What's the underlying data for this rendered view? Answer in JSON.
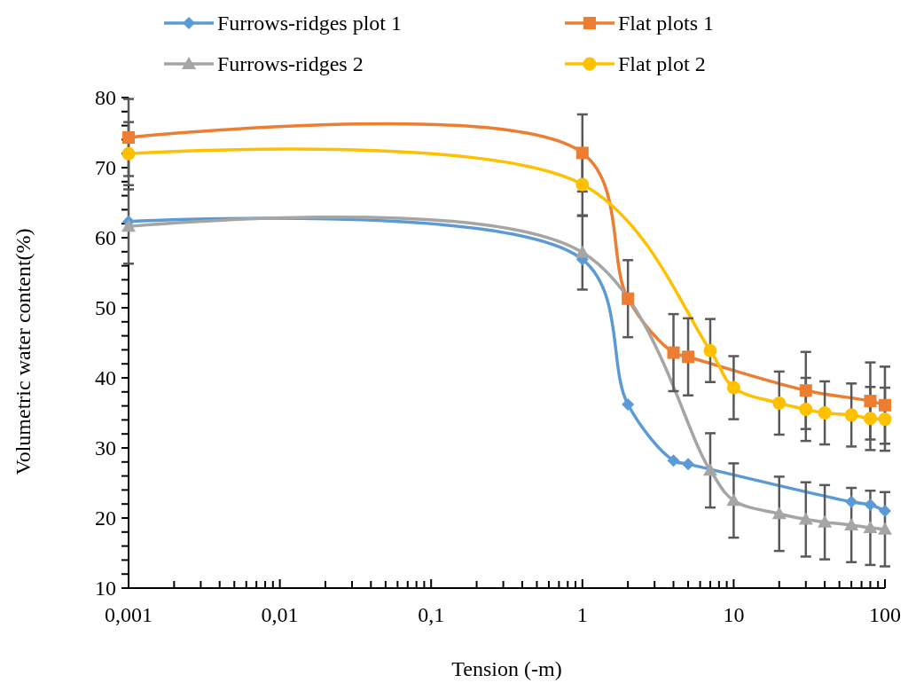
{
  "chart_data": {
    "type": "line",
    "xlabel": "Tension (-m)",
    "ylabel": "Volumetric water content(%)",
    "log": "x",
    "xlim": [
      0.001,
      100
    ],
    "ylim": [
      10,
      80
    ],
    "xticks": [
      {
        "value": 0.001,
        "label": "0,001"
      },
      {
        "value": 0.002,
        "label": null
      },
      {
        "value": 0.003,
        "label": null
      },
      {
        "value": 0.004,
        "label": null
      },
      {
        "value": 0.005,
        "label": null
      },
      {
        "value": 0.006,
        "label": null
      },
      {
        "value": 0.007,
        "label": null
      },
      {
        "value": 0.008,
        "label": null
      },
      {
        "value": 0.009,
        "label": null
      },
      {
        "value": 0.01,
        "label": "0,01"
      },
      {
        "value": 0.02,
        "label": null
      },
      {
        "value": 0.03,
        "label": null
      },
      {
        "value": 0.04,
        "label": null
      },
      {
        "value": 0.05,
        "label": null
      },
      {
        "value": 0.06,
        "label": null
      },
      {
        "value": 0.07,
        "label": null
      },
      {
        "value": 0.08,
        "label": null
      },
      {
        "value": 0.09,
        "label": null
      },
      {
        "value": 0.1,
        "label": "0,1"
      },
      {
        "value": 0.2,
        "label": null
      },
      {
        "value": 0.3,
        "label": null
      },
      {
        "value": 0.4,
        "label": null
      },
      {
        "value": 0.5,
        "label": null
      },
      {
        "value": 0.6,
        "label": null
      },
      {
        "value": 0.7,
        "label": null
      },
      {
        "value": 0.8,
        "label": null
      },
      {
        "value": 0.9,
        "label": null
      },
      {
        "value": 1,
        "label": "1"
      },
      {
        "value": 2,
        "label": null
      },
      {
        "value": 3,
        "label": null
      },
      {
        "value": 4,
        "label": null
      },
      {
        "value": 5,
        "label": null
      },
      {
        "value": 6,
        "label": null
      },
      {
        "value": 7,
        "label": null
      },
      {
        "value": 8,
        "label": null
      },
      {
        "value": 9,
        "label": null
      },
      {
        "value": 10,
        "label": "10"
      },
      {
        "value": 20,
        "label": null
      },
      {
        "value": 30,
        "label": null
      },
      {
        "value": 40,
        "label": null
      },
      {
        "value": 50,
        "label": null
      },
      {
        "value": 60,
        "label": null
      },
      {
        "value": 70,
        "label": null
      },
      {
        "value": 80,
        "label": null
      },
      {
        "value": 90,
        "label": null
      },
      {
        "value": 100,
        "label": "100"
      }
    ],
    "yticks": [
      10,
      {
        "value": 12,
        "label": null
      },
      {
        "value": 14,
        "label": null
      },
      {
        "value": 16,
        "label": null
      },
      {
        "value": 18,
        "label": null
      },
      20,
      {
        "value": 22,
        "label": null
      },
      {
        "value": 24,
        "label": null
      },
      {
        "value": 26,
        "label": null
      },
      {
        "value": 28,
        "label": null
      },
      30,
      {
        "value": 32,
        "label": null
      },
      {
        "value": 34,
        "label": null
      },
      {
        "value": 36,
        "label": null
      },
      {
        "value": 38,
        "label": null
      },
      40,
      {
        "value": 42,
        "label": null
      },
      {
        "value": 44,
        "label": null
      },
      {
        "value": 46,
        "label": null
      },
      {
        "value": 48,
        "label": null
      },
      50,
      {
        "value": 52,
        "label": null
      },
      {
        "value": 54,
        "label": null
      },
      {
        "value": 56,
        "label": null
      },
      {
        "value": 58,
        "label": null
      },
      60,
      {
        "value": 62,
        "label": null
      },
      {
        "value": 64,
        "label": null
      },
      {
        "value": 66,
        "label": null
      },
      {
        "value": 68,
        "label": null
      },
      70,
      {
        "value": 72,
        "label": null
      },
      {
        "value": 74,
        "label": null
      },
      {
        "value": 76,
        "label": null
      },
      {
        "value": 78,
        "label": null
      },
      80
    ],
    "grid": false,
    "legend": "top",
    "line_style": "solid",
    "series": [
      {
        "name": "Furrows-ridges plot 1",
        "color": "#5b9bd5",
        "marker": "diamond",
        "x": [
          0.001,
          1,
          2,
          4,
          5,
          60,
          80,
          100
        ],
        "values": [
          62.3,
          56.9,
          36.2,
          28.2,
          27.7,
          22.3,
          21.9,
          21.0
        ]
      },
      {
        "name": "Flat plots 1",
        "color": "#ed7d31",
        "marker": "square",
        "x": [
          0.001,
          1,
          2,
          4,
          5,
          30,
          80,
          100
        ],
        "values": [
          74.3,
          72.1,
          51.3,
          43.6,
          43.0,
          38.2,
          36.7,
          36.1
        ],
        "errors": [
          5.5,
          5.5,
          5.5,
          5.5,
          5.5,
          5.5,
          5.5,
          5.5
        ]
      },
      {
        "name": "Furrows-ridges 2",
        "color": "#a5a5a5",
        "marker": "triangle",
        "x": [
          0.001,
          1,
          7,
          10,
          20,
          30,
          40,
          60,
          80,
          100
        ],
        "values": [
          61.6,
          57.9,
          26.8,
          22.5,
          20.6,
          19.8,
          19.4,
          19.0,
          18.6,
          18.4
        ],
        "errors": [
          5.3,
          5.3,
          5.3,
          5.3,
          5.3,
          5.3,
          5.3,
          5.3,
          5.3,
          5.3
        ]
      },
      {
        "name": "Flat plot 2",
        "color": "#ffc000",
        "marker": "circle",
        "x": [
          0.001,
          1,
          7,
          10,
          20,
          30,
          40,
          60,
          80,
          100
        ],
        "values": [
          72.0,
          67.6,
          43.9,
          38.6,
          36.4,
          35.5,
          35.0,
          34.7,
          34.2,
          34.1
        ],
        "errors": [
          4.5,
          4.5,
          4.5,
          4.5,
          4.5,
          4.5,
          4.5,
          4.5,
          4.5,
          4.5
        ]
      }
    ]
  }
}
